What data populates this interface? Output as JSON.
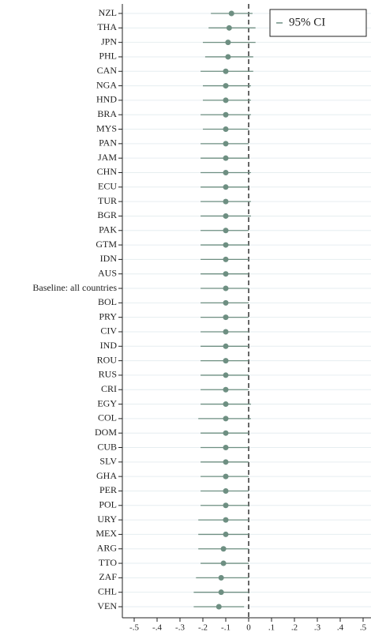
{
  "chart_data": {
    "type": "coefplot",
    "categories": [
      "NZL",
      "THA",
      "JPN",
      "PHL",
      "CAN",
      "NGA",
      "HND",
      "BRA",
      "MYS",
      "PAN",
      "JAM",
      "CHN",
      "ECU",
      "TUR",
      "BGR",
      "PAK",
      "GTM",
      "IDN",
      "AUS",
      "Baseline: all countries",
      "BOL",
      "PRY",
      "CIV",
      "IND",
      "ROU",
      "RUS",
      "CRI",
      "EGY",
      "COL",
      "DOM",
      "CUB",
      "SLV",
      "GHA",
      "PER",
      "POL",
      "URY",
      "MEX",
      "ARG",
      "TTO",
      "ZAF",
      "CHL",
      "VEN"
    ],
    "series": [
      {
        "name": "95% CI",
        "color": "#6e8f82",
        "values": [
          -0.075,
          -0.085,
          -0.09,
          -0.09,
          -0.1,
          -0.1,
          -0.1,
          -0.1,
          -0.1,
          -0.1,
          -0.1,
          -0.1,
          -0.1,
          -0.1,
          -0.1,
          -0.1,
          -0.1,
          -0.1,
          -0.1,
          -0.1,
          -0.1,
          -0.1,
          -0.1,
          -0.1,
          -0.1,
          -0.1,
          -0.1,
          -0.1,
          -0.1,
          -0.1,
          -0.1,
          -0.1,
          -0.1,
          -0.1,
          -0.1,
          -0.1,
          -0.1,
          -0.11,
          -0.11,
          -0.12,
          -0.12,
          -0.13
        ],
        "ci_low": [
          -0.165,
          -0.175,
          -0.2,
          -0.19,
          -0.21,
          -0.2,
          -0.2,
          -0.21,
          -0.2,
          -0.21,
          -0.21,
          -0.21,
          -0.21,
          -0.21,
          -0.21,
          -0.21,
          -0.21,
          -0.21,
          -0.21,
          -0.21,
          -0.21,
          -0.21,
          -0.21,
          -0.21,
          -0.21,
          -0.21,
          -0.21,
          -0.21,
          -0.22,
          -0.21,
          -0.21,
          -0.21,
          -0.21,
          -0.21,
          -0.21,
          -0.22,
          -0.22,
          -0.22,
          -0.21,
          -0.23,
          -0.24,
          -0.24
        ],
        "ci_high": [
          0.017,
          0.03,
          0.03,
          0.02,
          0.02,
          0.01,
          0.01,
          0.01,
          0.0,
          0.0,
          0.0,
          0.01,
          0.0,
          0.01,
          0.01,
          0.0,
          0.0,
          0.0,
          0.0,
          0.0,
          0.0,
          0.0,
          0.0,
          0.0,
          0.0,
          0.0,
          0.0,
          0.01,
          0.01,
          0.0,
          0.0,
          0.0,
          0.0,
          0.0,
          0.0,
          0.0,
          0.0,
          0.0,
          0.0,
          0.0,
          0.0,
          -0.02
        ]
      }
    ],
    "xlim": [
      -0.5,
      0.5
    ],
    "xticks": [
      {
        "value": -0.5,
        "label": "-.5"
      },
      {
        "value": -0.4,
        "label": "-.4"
      },
      {
        "value": -0.3,
        "label": "-.3"
      },
      {
        "value": -0.2,
        "label": "-.2"
      },
      {
        "value": -0.1,
        "label": "-.1"
      },
      0,
      {
        "value": 0.1,
        "label": ".1"
      },
      {
        "value": 0.2,
        "label": ".2"
      },
      {
        "value": 0.3,
        "label": ".3"
      },
      {
        "value": 0.4,
        "label": ".4"
      },
      {
        "value": 0.5,
        "label": ".5"
      }
    ],
    "reference_x": 0,
    "grid": true,
    "legend": "top-right"
  }
}
